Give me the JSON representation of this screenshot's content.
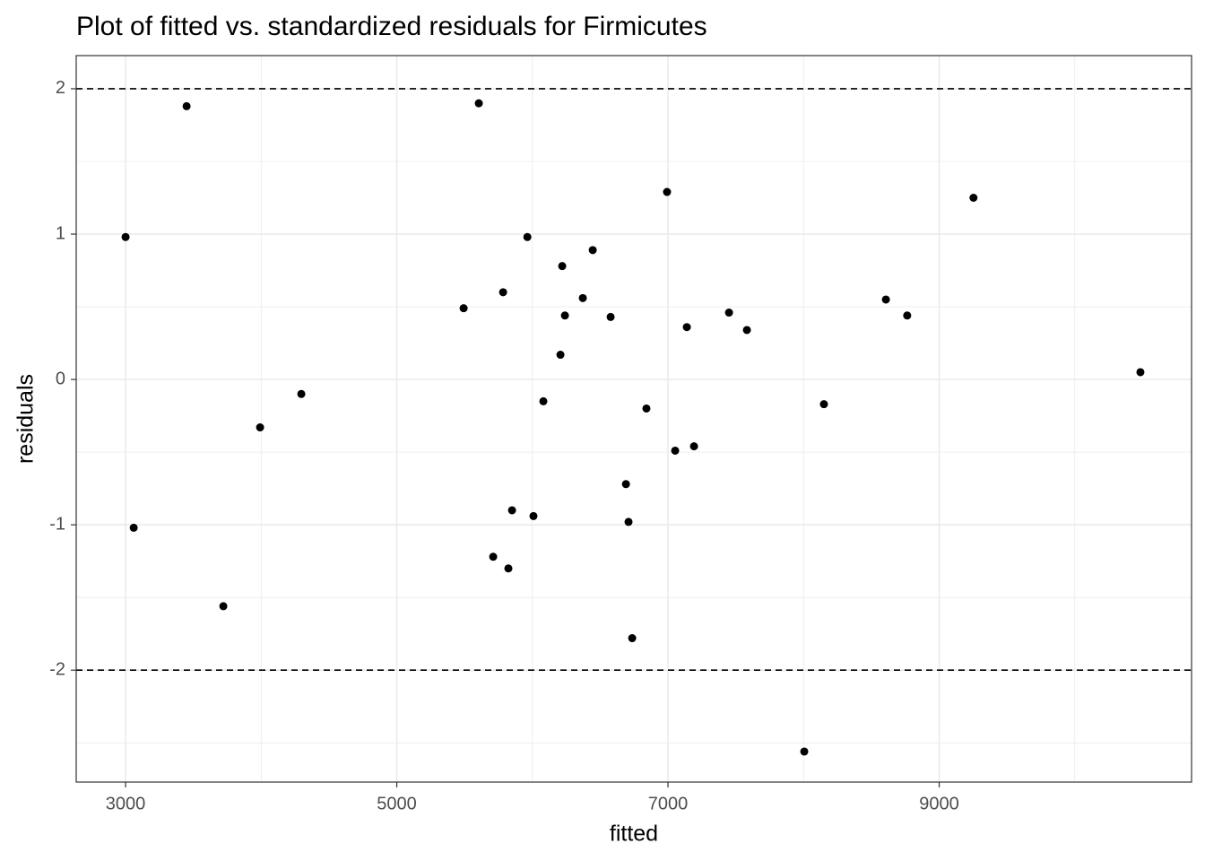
{
  "chart_data": {
    "type": "scatter",
    "title": "Plot of fitted vs. standardized residuals for Firmicutes",
    "x_label": "fitted",
    "y_label": "residuals",
    "color": "#000000",
    "grid": true,
    "xlim": [
      2636,
      10861
    ],
    "ylim": [
      -2.77,
      2.228
    ],
    "xticks": [
      3000,
      5000,
      7000,
      9000
    ],
    "yticks": [
      -2,
      -1,
      0,
      1,
      2
    ],
    "xminor_ticks": [
      4000,
      6000,
      8000,
      10000
    ],
    "yminor_ticks": [
      -2.5,
      -1.5,
      -0.5,
      0.5,
      1.5
    ],
    "hlines": [
      2,
      -2
    ],
    "x": [
      3000,
      3060,
      3450,
      3721,
      3992,
      4296,
      5493,
      5605,
      5711,
      5784,
      5823,
      5850,
      5963,
      6008,
      6081,
      6207,
      6220,
      6240,
      6372,
      6445,
      6577,
      6690,
      6709,
      6736,
      6841,
      6993,
      7053,
      7139,
      7192,
      7450,
      7582,
      8005,
      8150,
      8607,
      8764,
      9253,
      10484
    ],
    "values": [
      0.98,
      -1.02,
      1.88,
      -1.56,
      -0.33,
      -0.1,
      0.49,
      1.9,
      -1.22,
      0.6,
      -1.3,
      -0.9,
      0.98,
      -0.94,
      -0.15,
      0.17,
      0.78,
      0.44,
      0.56,
      0.89,
      0.43,
      -0.72,
      -0.98,
      -1.78,
      -0.2,
      1.29,
      -0.49,
      0.36,
      -0.46,
      0.46,
      0.34,
      -2.56,
      -0.17,
      0.55,
      0.44,
      1.25,
      0.05
    ]
  }
}
